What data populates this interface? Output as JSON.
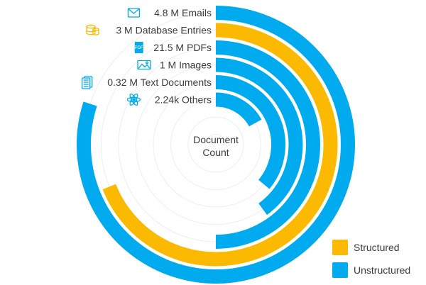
{
  "chart_data": {
    "type": "radial-bar",
    "center_label": [
      "Document",
      "Count"
    ],
    "value_max": 1,
    "colors": {
      "Structured": "#fbb900",
      "Unstructured": "#00aaee",
      "track": "#eeeeee",
      "text": "#3d3d3d"
    },
    "categories": [
      "Emails",
      "Database Entries",
      "PDFs",
      "Images",
      "Text Documents",
      "Others"
    ],
    "series": [
      {
        "label": "4.8 M Emails",
        "value": 0.8,
        "type": "Unstructured",
        "icon": "envelope-icon"
      },
      {
        "label": "3 M Database Entries",
        "value": 0.69,
        "type": "Structured",
        "icon": "database-icon"
      },
      {
        "label": "21.5 M PDFs",
        "value": 0.5,
        "type": "Unstructured",
        "icon": "pdf-file-icon"
      },
      {
        "label": "1 M Images",
        "value": 0.4,
        "type": "Unstructured",
        "icon": "image-icon"
      },
      {
        "label": "0.32 M Text Documents",
        "value": 0.36,
        "type": "Unstructured",
        "icon": "text-document-icon"
      },
      {
        "label": "2.24k Others",
        "value": 0.17,
        "type": "Unstructured",
        "icon": "atom-icon"
      }
    ],
    "legend": [
      {
        "label": "Structured",
        "color": "#fbb900"
      },
      {
        "label": "Unstructured",
        "color": "#00aaee"
      }
    ],
    "legend_position": "bottom-right"
  }
}
